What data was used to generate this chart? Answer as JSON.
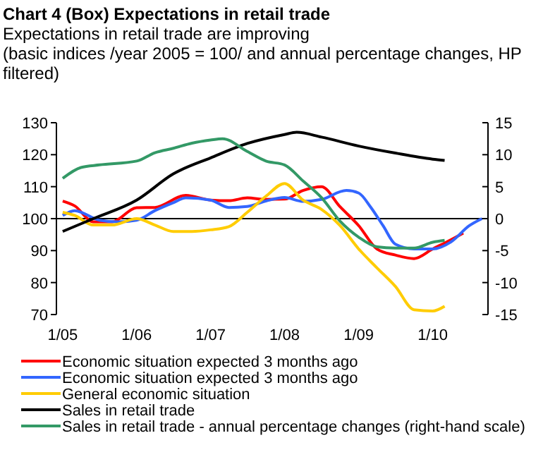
{
  "chart_data": {
    "type": "line",
    "title": "Chart 4 (Box) Expectations in retail trade",
    "subtitle": "Expectations in retail trade are improving",
    "annotations": [
      "(basic indices /year 2005 = 100/ and annual percentage changes, HP filtered)"
    ],
    "xlim": [
      "2004-12",
      "2010-10"
    ],
    "xticks": [
      {
        "value": "2005-01",
        "label": "1/05"
      },
      {
        "value": "2006-01",
        "label": "1/06"
      },
      {
        "value": "2007-01",
        "label": "1/07"
      },
      {
        "value": "2008-01",
        "label": "1/08"
      },
      {
        "value": "2009-01",
        "label": "1/09"
      },
      {
        "value": "2010-01",
        "label": "1/10"
      }
    ],
    "ylim": [
      70,
      130
    ],
    "yticks": [
      70,
      80,
      90,
      100,
      110,
      120,
      130
    ],
    "y2lim": [
      -15,
      15
    ],
    "y2ticks": [
      -15,
      -10,
      -5,
      0,
      5,
      10,
      15
    ],
    "ref_lines": [
      {
        "axis": "y",
        "value": 100,
        "color": "#000000"
      }
    ],
    "legend": "bottom",
    "grid": false,
    "marker": "none",
    "line_style": "solid",
    "series": [
      {
        "name": "Economic situation expected 3 months ago",
        "color": "#ff0000",
        "x": [
          "2005-01",
          "2005-03",
          "2005-06",
          "2005-09",
          "2006-01",
          "2006-04",
          "2006-09",
          "2007-01",
          "2007-04",
          "2007-07",
          "2007-10",
          "2008-01",
          "2008-04",
          "2008-07",
          "2008-10",
          "2009-01",
          "2009-04",
          "2009-07",
          "2009-10",
          "2010-01",
          "2010-04",
          "2010-06"
        ],
        "values": [
          105.5,
          104,
          99,
          99,
          103.4,
          103.5,
          107.3,
          105.8,
          105.6,
          106.5,
          106,
          106.1,
          108.8,
          110,
          103.7,
          97.8,
          90.5,
          88.6,
          87.5,
          90.5,
          93.4,
          95.5
        ]
      },
      {
        "name": "Economic situation expected 3 months ago",
        "color": "#3366ff",
        "x": [
          "2005-01",
          "2005-03",
          "2005-07",
          "2005-10",
          "2006-01",
          "2006-04",
          "2006-07",
          "2006-09",
          "2007-01",
          "2007-04",
          "2007-07",
          "2007-10",
          "2008-01",
          "2008-04",
          "2008-07",
          "2008-11",
          "2009-01",
          "2009-03",
          "2009-05",
          "2009-07",
          "2009-10",
          "2010-01",
          "2010-04",
          "2010-07",
          "2010-09"
        ],
        "values": [
          101,
          102.5,
          99.5,
          99,
          99.5,
          102.5,
          105,
          106.5,
          105.8,
          103.5,
          103.8,
          105.5,
          106.6,
          105.4,
          106,
          108.8,
          108,
          103.6,
          97.8,
          92,
          90.5,
          90.5,
          92.7,
          97.8,
          100
        ]
      },
      {
        "name": "General economic situation",
        "color": "#ffcc00",
        "x": [
          "2005-01",
          "2005-03",
          "2005-06",
          "2005-09",
          "2006-01",
          "2006-04",
          "2006-07",
          "2006-10",
          "2007-01",
          "2007-04",
          "2007-07",
          "2007-10",
          "2008-01",
          "2008-04",
          "2008-07",
          "2008-10",
          "2009-01",
          "2009-04",
          "2009-07",
          "2009-10",
          "2010-01",
          "2010-03"
        ],
        "values": [
          102,
          101,
          98,
          98,
          100,
          98,
          96,
          96,
          96.5,
          97.5,
          102,
          107,
          111,
          105.8,
          102.9,
          97.8,
          90.5,
          84.6,
          78.8,
          71.5,
          71.1,
          72.6
        ]
      },
      {
        "name": "Sales in retail trade",
        "color": "#000000",
        "x": [
          "2005-01",
          "2005-06",
          "2006-01",
          "2006-07",
          "2007-01",
          "2007-07",
          "2008-01",
          "2008-03",
          "2008-07",
          "2009-01",
          "2009-07",
          "2010-01",
          "2010-03"
        ],
        "values": [
          96,
          100,
          105.8,
          114,
          119,
          123.5,
          126.3,
          127,
          125.5,
          122.7,
          120.5,
          118.6,
          118.2
        ]
      },
      {
        "name": "Sales in retail trade - annual percentage changes (right-hand scale)",
        "color": "#339966",
        "axis": "y2",
        "x": [
          "2005-01",
          "2005-04",
          "2005-07",
          "2006-01",
          "2006-04",
          "2006-07",
          "2006-10",
          "2007-01",
          "2007-03",
          "2007-07",
          "2007-10",
          "2008-01",
          "2008-04",
          "2008-07",
          "2008-10",
          "2009-01",
          "2009-04",
          "2009-07",
          "2009-10",
          "2010-01",
          "2010-03"
        ],
        "values": [
          6.3,
          8,
          8.4,
          9,
          10.3,
          11,
          11.8,
          12.3,
          12.5,
          10.5,
          9,
          8.4,
          5.9,
          3.3,
          -0.4,
          -2.9,
          -4.4,
          -4.6,
          -4.6,
          -3.7,
          -3.4
        ]
      }
    ]
  }
}
